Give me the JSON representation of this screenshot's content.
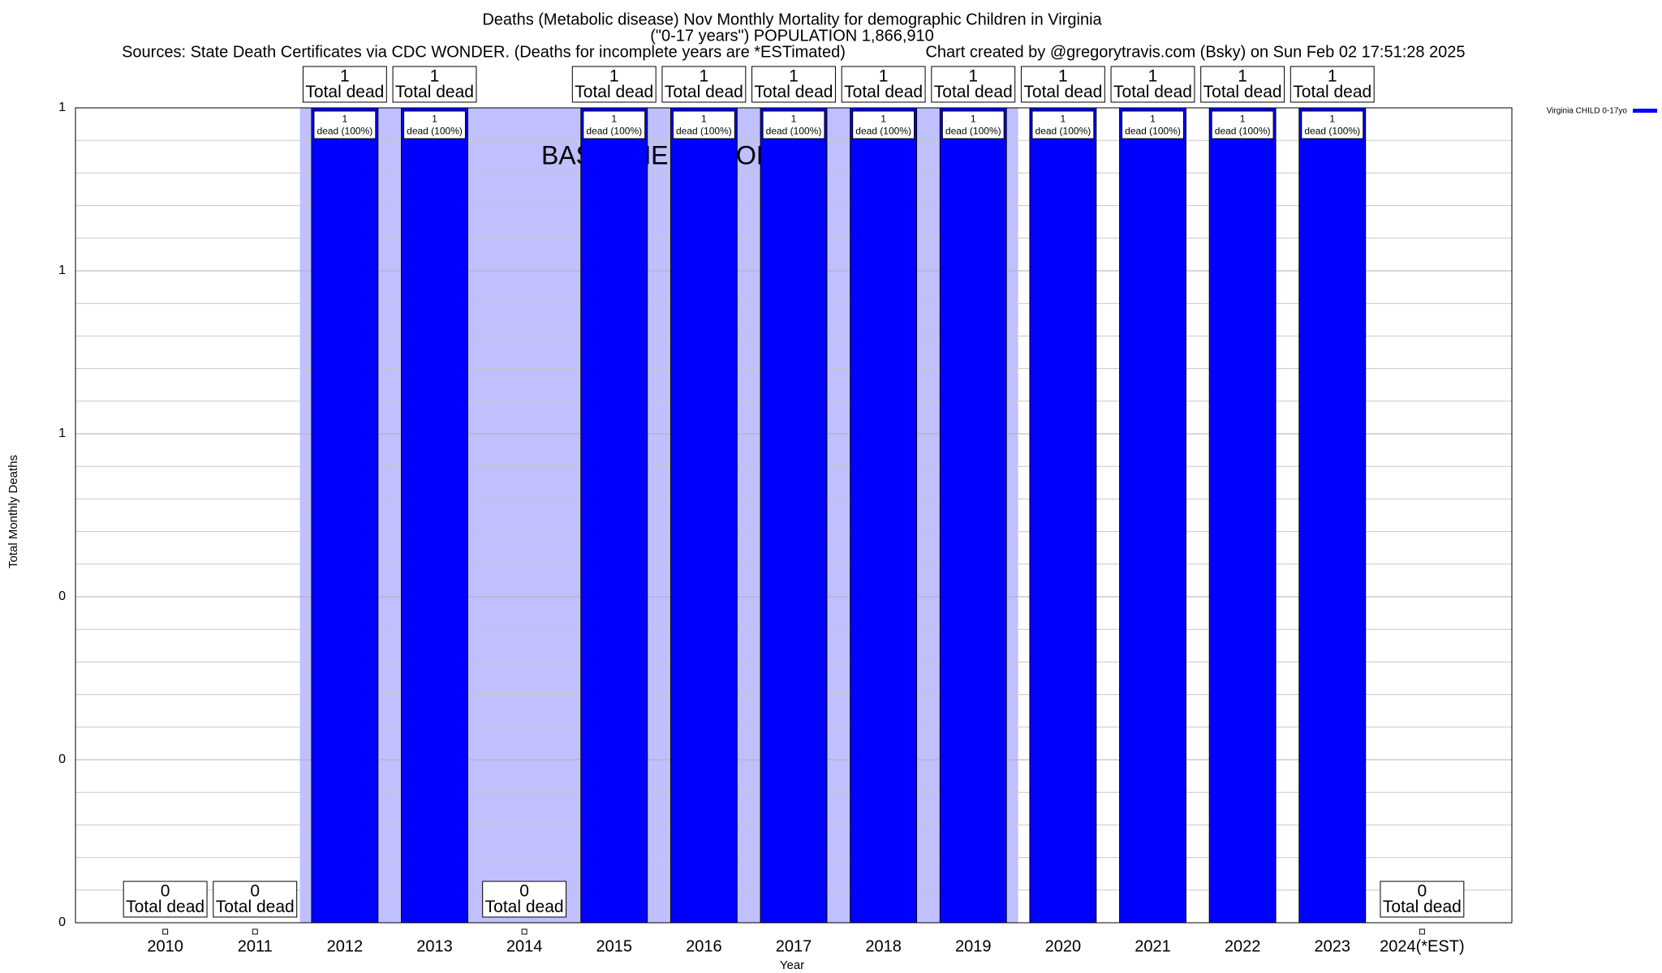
{
  "chart_data": {
    "type": "bar",
    "title": "Deaths (Metabolic disease) Nov Monthly Mortality for demographic Children in Virginia",
    "subtitle": "(\"0-17 years\") POPULATION 1,866,910",
    "sources": "Sources: State Death Certificates via CDC WONDER. (Deaths for incomplete years are *ESTimated)",
    "credit": "Chart created by @gregorytravis.com (Bsky) on Sun Feb 02 17:51:28 2025",
    "x_label": "Year",
    "y_label": "Total Monthly Deaths",
    "categories": [
      "2010",
      "2011",
      "2012",
      "2013",
      "2014",
      "2015",
      "2016",
      "2017",
      "2018",
      "2019",
      "2020",
      "2021",
      "2022",
      "2023",
      "2024(*EST)"
    ],
    "series": [
      {
        "name": "Virginia CHILD 0-17yo",
        "color": "#0000ff",
        "values": [
          0,
          0,
          1,
          1,
          0,
          1,
          1,
          1,
          1,
          1,
          1,
          1,
          1,
          1,
          0
        ],
        "inner_labels": [
          null,
          null,
          "dead (100%)",
          "dead (100%)",
          null,
          "dead (100%)",
          "dead (100%)",
          "dead (100%)",
          "dead (100%)",
          "dead (100%)",
          "dead (100%)",
          "dead (100%)",
          "dead (100%)",
          "dead (100%)",
          null
        ]
      }
    ],
    "total_label": "Total dead",
    "baseline": {
      "label": "BASELINE PERIOD",
      "start": "2012",
      "end": "2019",
      "color": "#c0c0ff"
    },
    "ylim": [
      0,
      1
    ],
    "yticks": [
      0,
      {
        "value": 0.2,
        "label": "0"
      },
      {
        "value": 0.4,
        "label": "0"
      },
      {
        "value": 0.6,
        "label": "1"
      },
      {
        "value": 0.8,
        "label": "1"
      },
      1
    ],
    "grid": true,
    "legend": "upper right"
  }
}
